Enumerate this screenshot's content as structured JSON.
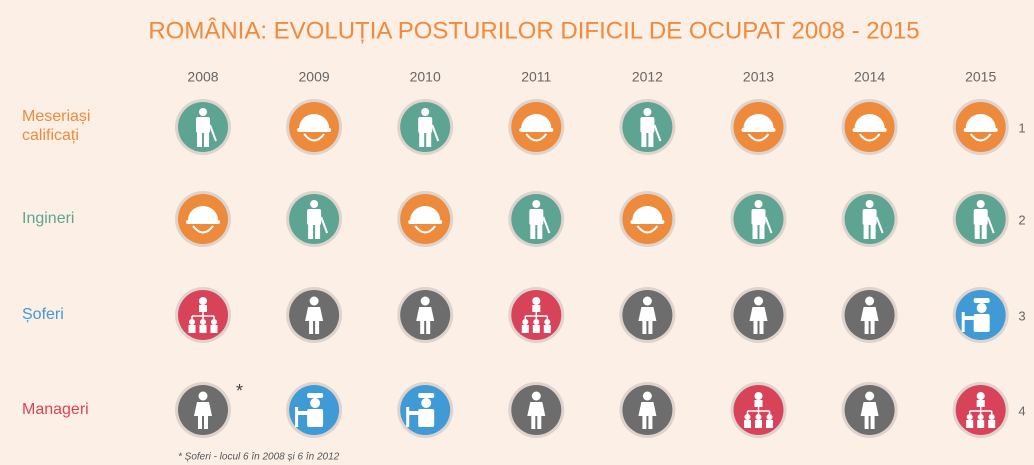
{
  "title": "ROMÂNIA: EVOLUȚIA POSTURILOR DIFICIL DE OCUPAT 2008 - 2015",
  "years": [
    "2008",
    "2009",
    "2010",
    "2011",
    "2012",
    "2013",
    "2014",
    "2015"
  ],
  "other_color": "#6d6d6d",
  "rows": [
    {
      "label": "Meseriași calificați",
      "color": "#ee8a3c",
      "rank": "1",
      "cells": [
        "Ingineri",
        "Meseriași calificați",
        "Ingineri",
        "Meseriași calificați",
        "Ingineri",
        "Meseriași calificați",
        "Meseriași calificați",
        "Meseriași calificați"
      ]
    },
    {
      "label": "Ingineri",
      "color": "#5ea493",
      "rank": "2",
      "cells": [
        "Meseriași calificați",
        "Ingineri",
        "Meseriași calificați",
        "Ingineri",
        "Meseriași calificați",
        "Ingineri",
        "Ingineri",
        "Ingineri"
      ]
    },
    {
      "label": "Șoferi",
      "color": "#3f9ad6",
      "rank": "3",
      "cells": [
        "Manageri",
        null,
        null,
        "Manageri",
        null,
        null,
        null,
        "Șoferi"
      ]
    },
    {
      "label": "Manageri",
      "color": "#d9435a",
      "rank": "4",
      "cells": [
        null,
        "Șoferi",
        "Șoferi",
        null,
        null,
        "Manageri",
        null,
        "Manageri"
      ]
    }
  ],
  "asterisk": "*",
  "footnote": "* Șoferi  - locul 6 în 2008 și 6 în 2012"
}
